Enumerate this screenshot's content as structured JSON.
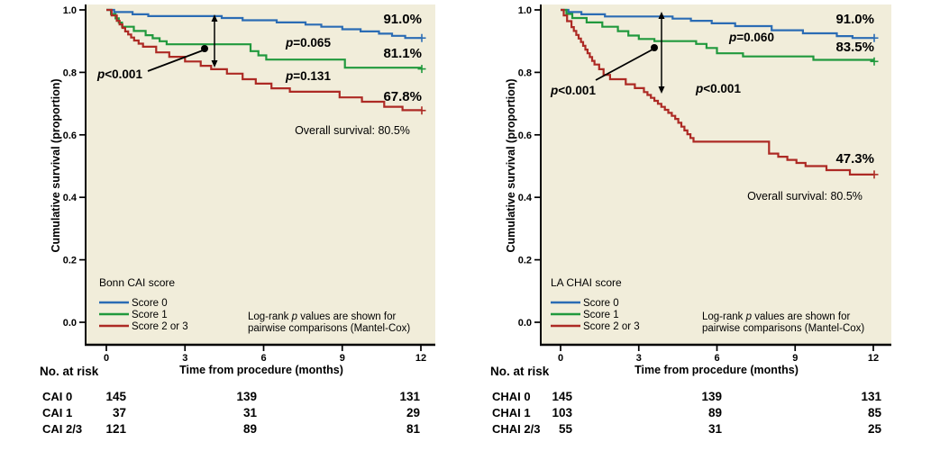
{
  "chart_data": [
    {
      "type": "line",
      "subtype": "kaplan-meier-step",
      "legend_title": "Bonn CAI score",
      "xlabel": "Time from procedure (months)",
      "ylabel": "Cumulative survival (proportion)",
      "xlim": [
        0,
        12
      ],
      "ylim": [
        0.0,
        1.0
      ],
      "xticks": [
        0,
        3,
        6,
        9,
        12
      ],
      "yticks": [
        "1.0",
        "0.8",
        "0.6",
        "0.4",
        "0.2",
        "0.0"
      ],
      "grid": false,
      "legend_position": "lower-left-inside",
      "plot_bg": "#f1edda",
      "series": [
        {
          "name": "Score 0",
          "color": "#2b6cb4",
          "final_label": "91.0%",
          "points": [
            [
              0,
              1.0
            ],
            [
              0.3,
              0.993
            ],
            [
              1.0,
              0.986
            ],
            [
              1.6,
              0.98
            ],
            [
              4.4,
              0.974
            ],
            [
              5.2,
              0.967
            ],
            [
              6.5,
              0.96
            ],
            [
              7.6,
              0.953
            ],
            [
              8.2,
              0.946
            ],
            [
              9.0,
              0.938
            ],
            [
              9.7,
              0.931
            ],
            [
              10.4,
              0.924
            ],
            [
              10.9,
              0.917
            ],
            [
              11.4,
              0.91
            ],
            [
              12,
              0.91
            ]
          ]
        },
        {
          "name": "Score 1",
          "color": "#21993d",
          "final_label": "81.1%",
          "points": [
            [
              0,
              1.0
            ],
            [
              0.35,
              0.973
            ],
            [
              0.6,
              0.946
            ],
            [
              1.5,
              0.919
            ],
            [
              2.3,
              0.89
            ],
            [
              5.5,
              0.868
            ],
            [
              6.1,
              0.841
            ],
            [
              9.1,
              0.815
            ],
            [
              12,
              0.811
            ]
          ]
        },
        {
          "name": "Score 2 or 3",
          "color": "#ad2a24",
          "final_label": "67.8%",
          "points": [
            [
              0,
              1.0
            ],
            [
              0.2,
              0.982
            ],
            [
              0.4,
              0.965
            ],
            [
              0.72,
              0.931
            ],
            [
              1.06,
              0.902
            ],
            [
              1.4,
              0.882
            ],
            [
              1.9,
              0.864
            ],
            [
              2.4,
              0.85
            ],
            [
              3.0,
              0.835
            ],
            [
              3.6,
              0.821
            ],
            [
              4.0,
              0.81
            ],
            [
              4.6,
              0.796
            ],
            [
              5.2,
              0.778
            ],
            [
              5.7,
              0.764
            ],
            [
              6.3,
              0.749
            ],
            [
              7.0,
              0.738
            ],
            [
              8.9,
              0.72
            ],
            [
              9.75,
              0.706
            ],
            [
              10.6,
              0.69
            ],
            [
              11.3,
              0.679
            ],
            [
              12,
              0.678
            ]
          ]
        }
      ],
      "annotations": {
        "p_top": "p=0.065",
        "p_bottom": "p=0.131",
        "p_left": "p<0.001",
        "overall": "Overall survival: 80.5%",
        "note_line1": "Log-rank p values are shown for",
        "note_line2": "pairwise comparisons (Mantel-Cox)"
      },
      "risk_table": {
        "header": "No. at risk",
        "time_columns": [
          0,
          6,
          12
        ],
        "rows": [
          {
            "label": "CAI 0",
            "color": "#2b6cb4",
            "values": [
              "145",
              "139",
              "131"
            ]
          },
          {
            "label": "CAI 1",
            "color": "#21993d",
            "values": [
              "37",
              "31",
              "29"
            ]
          },
          {
            "label": "CAI 2/3",
            "color": "#ad2a24",
            "values": [
              "121",
              "89",
              "81"
            ]
          }
        ]
      }
    },
    {
      "type": "line",
      "subtype": "kaplan-meier-step",
      "legend_title": "LA CHAI score",
      "xlabel": "Time from procedure (months)",
      "ylabel": "Cumulative survival (proportion)",
      "xlim": [
        0,
        12
      ],
      "ylim": [
        0.0,
        1.0
      ],
      "xticks": [
        0,
        3,
        6,
        9,
        12
      ],
      "yticks": [
        "1.0",
        "0.8",
        "0.6",
        "0.4",
        "0.2",
        "0.0"
      ],
      "grid": false,
      "legend_position": "lower-left-inside",
      "plot_bg": "#f1edda",
      "series": [
        {
          "name": "Score 0",
          "color": "#2b6cb4",
          "final_label": "91.0%",
          "points": [
            [
              0,
              1.0
            ],
            [
              0.3,
              0.993
            ],
            [
              0.8,
              0.986
            ],
            [
              1.7,
              0.979
            ],
            [
              4.3,
              0.972
            ],
            [
              5.0,
              0.965
            ],
            [
              5.8,
              0.957
            ],
            [
              6.7,
              0.948
            ],
            [
              8.1,
              0.935
            ],
            [
              9.3,
              0.925
            ],
            [
              10.6,
              0.916
            ],
            [
              11.2,
              0.91
            ],
            [
              12,
              0.91
            ]
          ]
        },
        {
          "name": "Score 1",
          "color": "#21993d",
          "final_label": "83.5%",
          "points": [
            [
              0,
              1.0
            ],
            [
              0.45,
              0.974
            ],
            [
              1.0,
              0.96
            ],
            [
              1.6,
              0.946
            ],
            [
              2.2,
              0.932
            ],
            [
              2.6,
              0.918
            ],
            [
              3.0,
              0.907
            ],
            [
              3.6,
              0.9
            ],
            [
              5.2,
              0.891
            ],
            [
              5.6,
              0.878
            ],
            [
              6.0,
              0.861
            ],
            [
              7.0,
              0.851
            ],
            [
              9.7,
              0.84
            ],
            [
              12,
              0.835
            ]
          ]
        },
        {
          "name": "Score 2 or 3",
          "color": "#ad2a24",
          "final_label": "47.3%",
          "points": [
            [
              0,
              1.0
            ],
            [
              0.12,
              0.982
            ],
            [
              0.25,
              0.964
            ],
            [
              0.42,
              0.945
            ],
            [
              0.6,
              0.92
            ],
            [
              0.78,
              0.897
            ],
            [
              0.95,
              0.873
            ],
            [
              1.12,
              0.849
            ],
            [
              1.3,
              0.825
            ],
            [
              1.48,
              0.81
            ],
            [
              1.65,
              0.792
            ],
            [
              1.9,
              0.778
            ],
            [
              2.5,
              0.762
            ],
            [
              3.2,
              0.737
            ],
            [
              3.6,
              0.709
            ],
            [
              4.0,
              0.68
            ],
            [
              4.4,
              0.651
            ],
            [
              4.75,
              0.614
            ],
            [
              5.1,
              0.578
            ],
            [
              8.0,
              0.54
            ],
            [
              8.7,
              0.52
            ],
            [
              9.4,
              0.5
            ],
            [
              10.2,
              0.487
            ],
            [
              11.1,
              0.473
            ],
            [
              12,
              0.473
            ]
          ]
        }
      ],
      "annotations": {
        "p_top": "p=0.060",
        "p_bottom": "p<0.001",
        "p_left": "p<0.001",
        "overall": "Overall survival: 80.5%",
        "note_line1": "Log-rank p values are shown for",
        "note_line2": "pairwise comparisons (Mantel-Cox)"
      },
      "risk_table": {
        "header": "No. at risk",
        "time_columns": [
          0,
          6,
          12
        ],
        "rows": [
          {
            "label": "CHAI 0",
            "color": "#2b6cb4",
            "values": [
              "145",
              "139",
              "131"
            ]
          },
          {
            "label": "CHAI 1",
            "color": "#21993d",
            "values": [
              "103",
              "89",
              "85"
            ]
          },
          {
            "label": "CHAI 2/3",
            "color": "#ad2a24",
            "values": [
              "55",
              "31",
              "25"
            ]
          }
        ]
      }
    }
  ]
}
